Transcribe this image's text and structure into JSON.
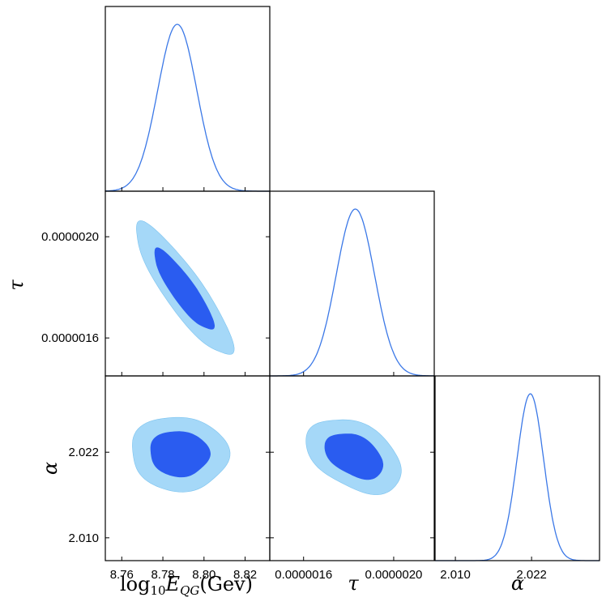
{
  "chart_data": {
    "type": "corner",
    "parameters": [
      {
        "key": "logE",
        "label": "log₁₀E_QG(Gev)",
        "range": [
          8.752,
          8.832
        ],
        "ticks": [
          8.76,
          8.78,
          8.8,
          8.82
        ],
        "tick_labels": [
          "8.76",
          "8.78",
          "8.80",
          "8.82"
        ],
        "mean": 8.787,
        "sigma": 0.0095
      },
      {
        "key": "tau",
        "label": "τ",
        "range": [
          1.45e-06,
          2.18e-06
        ],
        "ticks": [
          1.6e-06,
          2e-06
        ],
        "tick_labels": [
          "0.0000016",
          "0.0000020"
        ],
        "mean": 1.83e-06,
        "sigma": 8.5e-08
      },
      {
        "key": "alpha",
        "label": "α",
        "range": [
          2.0068,
          2.0327
        ],
        "ticks": [
          2.01,
          2.022
        ],
        "tick_labels": [
          "2.010",
          "2.022"
        ],
        "mean": 2.0218,
        "sigma": 0.0021
      }
    ],
    "marginals": [
      {
        "param": "logE",
        "mean": 8.787,
        "sigma": 0.0095
      },
      {
        "param": "tau",
        "mean": 1.83e-06,
        "sigma": 8.5e-08
      },
      {
        "param": "alpha",
        "mean": 2.0218,
        "sigma": 0.0021
      }
    ],
    "contours": [
      {
        "x": "logE",
        "y": "tau",
        "center": [
          8.79,
          1.79e-06
        ],
        "sx": 0.0095,
        "sy": 1.05e-07,
        "rho": -0.88,
        "levels": [
          1.52,
          2.49
        ]
      },
      {
        "x": "logE",
        "y": "alpha",
        "center": [
          8.788,
          2.0218
        ],
        "sx": 0.0095,
        "sy": 0.0021,
        "rho": -0.05,
        "levels": [
          1.52,
          2.49
        ]
      },
      {
        "x": "tau",
        "y": "alpha",
        "center": [
          1.825e-06,
          2.0215
        ],
        "sx": 8.5e-08,
        "sy": 0.0021,
        "rho": -0.4,
        "levels": [
          1.52,
          2.49
        ]
      }
    ],
    "colors": {
      "inner": "#2a5cf0",
      "outer": "#a5d8f8",
      "line": "#3b78e7"
    }
  }
}
